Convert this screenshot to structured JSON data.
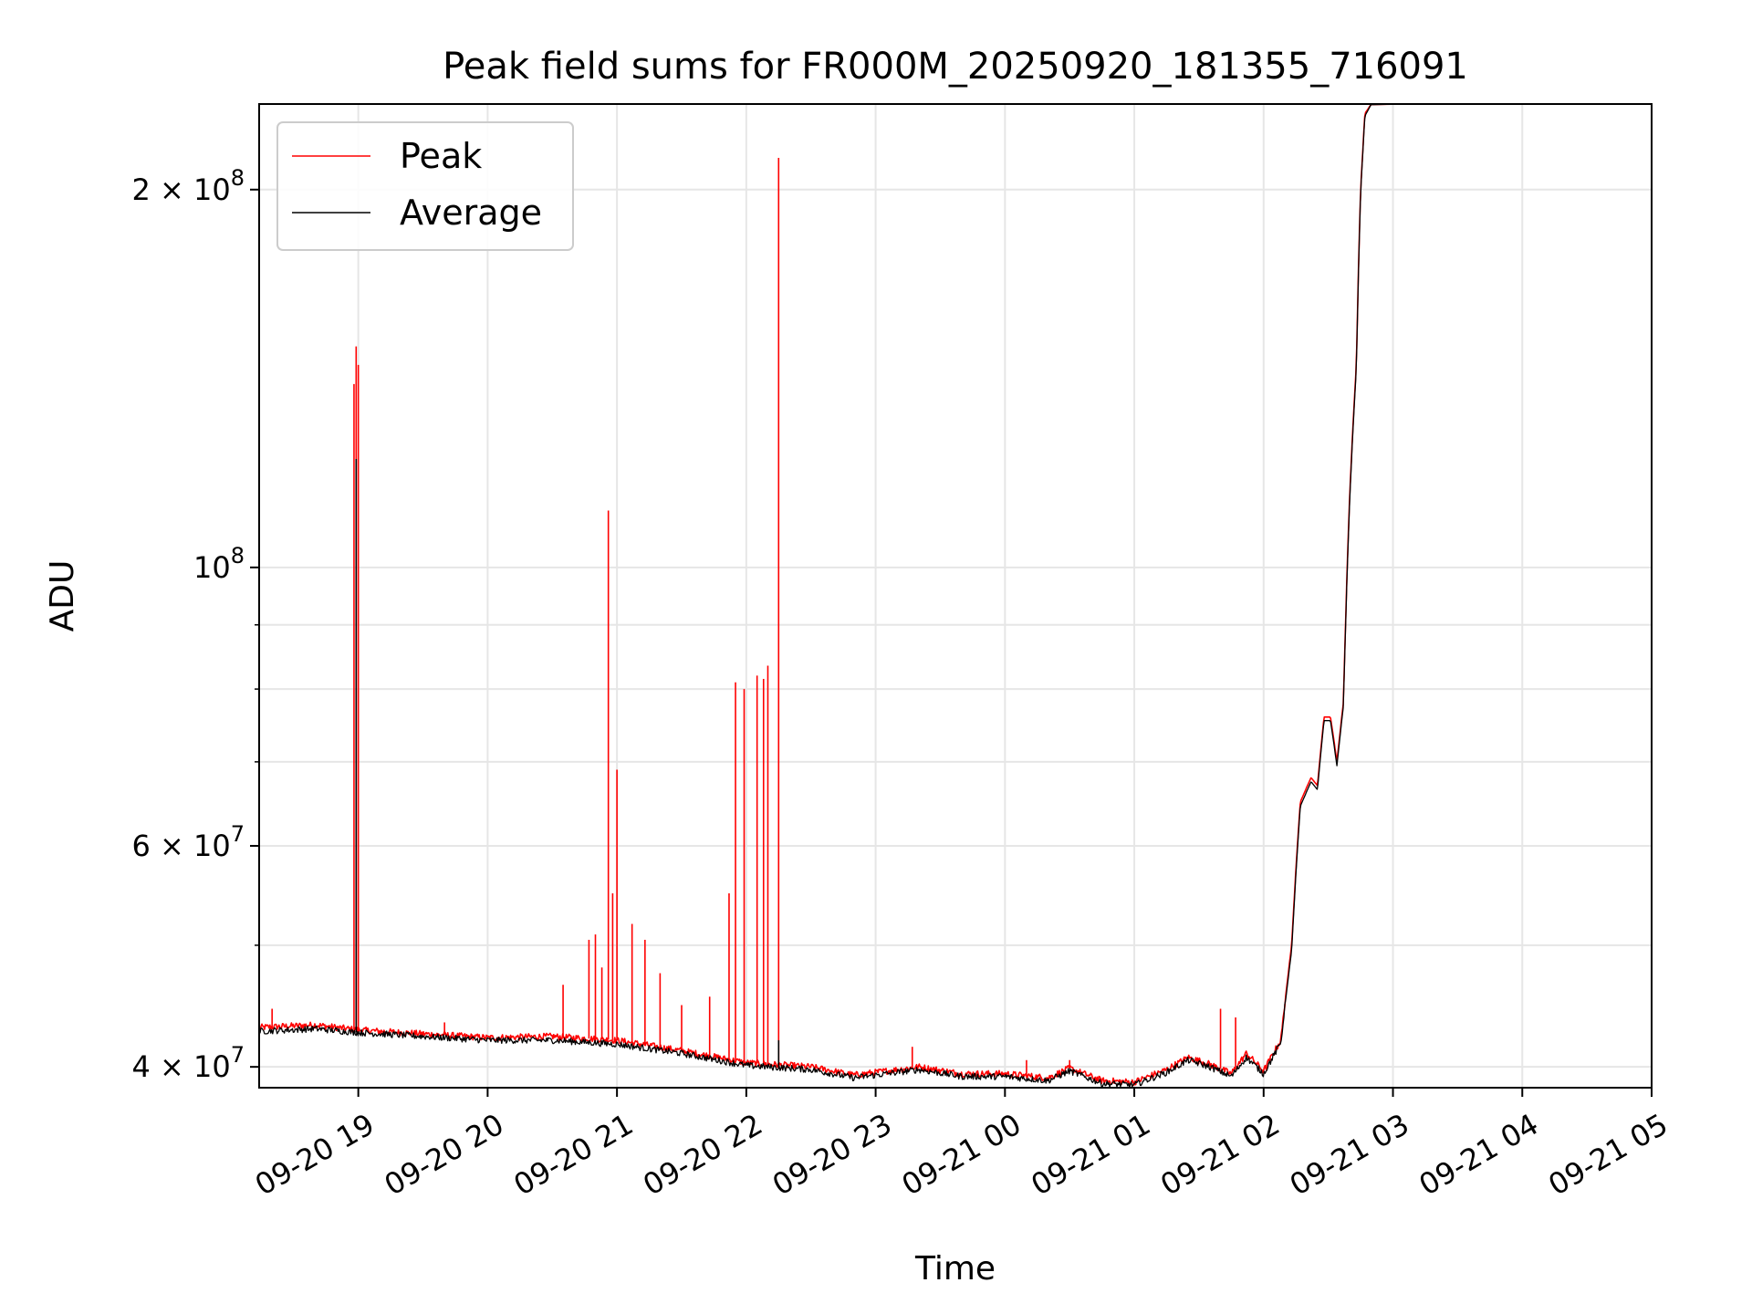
{
  "chart_data": {
    "type": "line",
    "title": "Peak field sums for FR000M_20250920_181355_716091",
    "xlabel": "Time",
    "ylabel": "ADU",
    "y_scale": "log",
    "ylim": [
      38500000,
      234000000
    ],
    "xlim": [
      "2025-09-20 18:14",
      "2025-09-21 05:00"
    ],
    "grid": true,
    "legend_position": "top-left",
    "x_ticks": [
      {
        "date": "2025-09-20 19:00",
        "label": "09-20 19"
      },
      {
        "date": "2025-09-20 20:00",
        "label": "09-20 20"
      },
      {
        "date": "2025-09-20 21:00",
        "label": "09-20 21"
      },
      {
        "date": "2025-09-20 22:00",
        "label": "09-20 22"
      },
      {
        "date": "2025-09-20 23:00",
        "label": "09-20 23"
      },
      {
        "date": "2025-09-21 00:00",
        "label": "09-21 00"
      },
      {
        "date": "2025-09-21 01:00",
        "label": "09-21 01"
      },
      {
        "date": "2025-09-21 02:00",
        "label": "09-21 02"
      },
      {
        "date": "2025-09-21 03:00",
        "label": "09-21 03"
      },
      {
        "date": "2025-09-21 04:00",
        "label": "09-21 04"
      },
      {
        "date": "2025-09-21 05:00",
        "label": "09-21 05"
      }
    ],
    "y_ticks_major": [
      {
        "value": 40000000,
        "mantissa": "4",
        "exponent": "7"
      },
      {
        "value": 60000000,
        "mantissa": "6",
        "exponent": "7"
      },
      {
        "value": 100000000,
        "mantissa": "",
        "exponent": "8"
      },
      {
        "value": 200000000,
        "mantissa": "2",
        "exponent": "8"
      }
    ],
    "y_ticks_minor": [
      50000000,
      70000000,
      80000000,
      90000000
    ],
    "series": [
      {
        "name": "Peak",
        "color": "#ff0000",
        "baseline": [
          [
            "2025-09-20 18:14",
            43000000
          ],
          [
            "2025-09-20 18:40",
            43200000
          ],
          [
            "2025-09-20 19:00",
            42800000
          ],
          [
            "2025-09-20 19:30",
            42500000
          ],
          [
            "2025-09-20 20:00",
            42200000
          ],
          [
            "2025-09-20 20:30",
            42300000
          ],
          [
            "2025-09-20 21:00",
            42000000
          ],
          [
            "2025-09-20 21:30",
            41200000
          ],
          [
            "2025-09-20 22:00",
            40300000
          ],
          [
            "2025-09-20 22:30",
            40000000
          ],
          [
            "2025-09-20 22:50",
            39400000
          ],
          [
            "2025-09-20 23:00",
            39600000
          ],
          [
            "2025-09-20 23:20",
            40000000
          ],
          [
            "2025-09-20 23:40",
            39500000
          ],
          [
            "2025-09-21 00:00",
            39500000
          ],
          [
            "2025-09-21 00:20",
            39200000
          ],
          [
            "2025-09-21 00:30",
            39900000
          ],
          [
            "2025-09-21 00:45",
            39000000
          ],
          [
            "2025-09-21 01:00",
            38900000
          ],
          [
            "2025-09-21 01:15",
            39800000
          ],
          [
            "2025-09-21 01:25",
            40700000
          ],
          [
            "2025-09-21 01:35",
            40200000
          ],
          [
            "2025-09-21 01:45",
            39500000
          ],
          [
            "2025-09-21 01:52",
            41000000
          ],
          [
            "2025-09-21 02:00",
            39700000
          ],
          [
            "2025-09-21 02:08",
            42000000
          ],
          [
            "2025-09-21 02:13",
            50000000
          ],
          [
            "2025-09-21 02:17",
            65000000
          ],
          [
            "2025-09-21 02:22",
            68000000
          ],
          [
            "2025-09-21 02:25",
            67000000
          ],
          [
            "2025-09-21 02:28",
            76000000
          ],
          [
            "2025-09-21 02:31",
            76000000
          ],
          [
            "2025-09-21 02:34",
            70000000
          ],
          [
            "2025-09-21 02:37",
            78000000
          ],
          [
            "2025-09-21 02:40",
            115000000
          ],
          [
            "2025-09-21 02:43",
            145000000
          ],
          [
            "2025-09-21 02:45",
            200000000
          ],
          [
            "2025-09-21 02:47",
            230000000
          ],
          [
            "2025-09-21 02:50",
            234000000
          ]
        ],
        "spikes": [
          [
            "2025-09-20 18:20",
            44500000
          ],
          [
            "2025-09-20 18:58",
            140000000
          ],
          [
            "2025-09-20 18:59",
            150000000
          ],
          [
            "2025-09-20 19:00",
            145000000
          ],
          [
            "2025-09-20 19:40",
            43400000
          ],
          [
            "2025-09-20 20:35",
            46500000
          ],
          [
            "2025-09-20 20:47",
            50500000
          ],
          [
            "2025-09-20 20:50",
            51000000
          ],
          [
            "2025-09-20 20:53",
            48000000
          ],
          [
            "2025-09-20 20:56",
            111000000
          ],
          [
            "2025-09-20 20:58",
            55000000
          ],
          [
            "2025-09-20 21:00",
            69000000
          ],
          [
            "2025-09-20 21:07",
            52000000
          ],
          [
            "2025-09-20 21:13",
            50500000
          ],
          [
            "2025-09-20 21:20",
            47500000
          ],
          [
            "2025-09-20 21:30",
            44800000
          ],
          [
            "2025-09-20 21:43",
            45500000
          ],
          [
            "2025-09-20 21:52",
            55000000
          ],
          [
            "2025-09-20 21:55",
            81000000
          ],
          [
            "2025-09-20 21:59",
            80000000
          ],
          [
            "2025-09-20 22:05",
            82000000
          ],
          [
            "2025-09-20 22:08",
            81500000
          ],
          [
            "2025-09-20 22:10",
            83500000
          ],
          [
            "2025-09-20 22:15",
            212000000
          ],
          [
            "2025-09-20 23:17",
            41500000
          ],
          [
            "2025-09-21 00:10",
            40500000
          ],
          [
            "2025-09-21 00:30",
            40500000
          ],
          [
            "2025-09-21 01:40",
            44500000
          ],
          [
            "2025-09-21 01:47",
            43800000
          ]
        ]
      },
      {
        "name": "Average",
        "color": "#000000",
        "baseline": [
          [
            "2025-09-20 18:14",
            42700000
          ],
          [
            "2025-09-20 18:40",
            42900000
          ],
          [
            "2025-09-20 19:00",
            42600000
          ],
          [
            "2025-09-20 19:30",
            42300000
          ],
          [
            "2025-09-20 20:00",
            42000000
          ],
          [
            "2025-09-20 20:30",
            42000000
          ],
          [
            "2025-09-20 21:00",
            41700000
          ],
          [
            "2025-09-20 21:30",
            41000000
          ],
          [
            "2025-09-20 22:00",
            40100000
          ],
          [
            "2025-09-20 22:30",
            39800000
          ],
          [
            "2025-09-20 22:50",
            39200000
          ],
          [
            "2025-09-20 23:00",
            39400000
          ],
          [
            "2025-09-20 23:20",
            39800000
          ],
          [
            "2025-09-20 23:40",
            39300000
          ],
          [
            "2025-09-21 00:00",
            39300000
          ],
          [
            "2025-09-21 00:20",
            39000000
          ],
          [
            "2025-09-21 00:30",
            39700000
          ],
          [
            "2025-09-21 00:45",
            38800000
          ],
          [
            "2025-09-21 01:00",
            38700000
          ],
          [
            "2025-09-21 01:15",
            39600000
          ],
          [
            "2025-09-21 01:25",
            40500000
          ],
          [
            "2025-09-21 01:35",
            40000000
          ],
          [
            "2025-09-21 01:45",
            39300000
          ],
          [
            "2025-09-21 01:52",
            40700000
          ],
          [
            "2025-09-21 02:00",
            39500000
          ],
          [
            "2025-09-21 02:08",
            41800000
          ],
          [
            "2025-09-21 02:13",
            49500000
          ],
          [
            "2025-09-21 02:17",
            64500000
          ],
          [
            "2025-09-21 02:22",
            67500000
          ],
          [
            "2025-09-21 02:25",
            66500000
          ],
          [
            "2025-09-21 02:28",
            75500000
          ],
          [
            "2025-09-21 02:31",
            75500000
          ],
          [
            "2025-09-21 02:34",
            69500000
          ],
          [
            "2025-09-21 02:37",
            77500000
          ],
          [
            "2025-09-21 02:40",
            114000000
          ],
          [
            "2025-09-21 02:43",
            144000000
          ],
          [
            "2025-09-21 02:45",
            199000000
          ],
          [
            "2025-09-21 02:47",
            229000000
          ],
          [
            "2025-09-21 02:50",
            234000000
          ]
        ],
        "spikes": [
          [
            "2025-09-20 18:59",
            122000000
          ],
          [
            "2025-09-20 22:15",
            42000000
          ]
        ]
      }
    ]
  }
}
